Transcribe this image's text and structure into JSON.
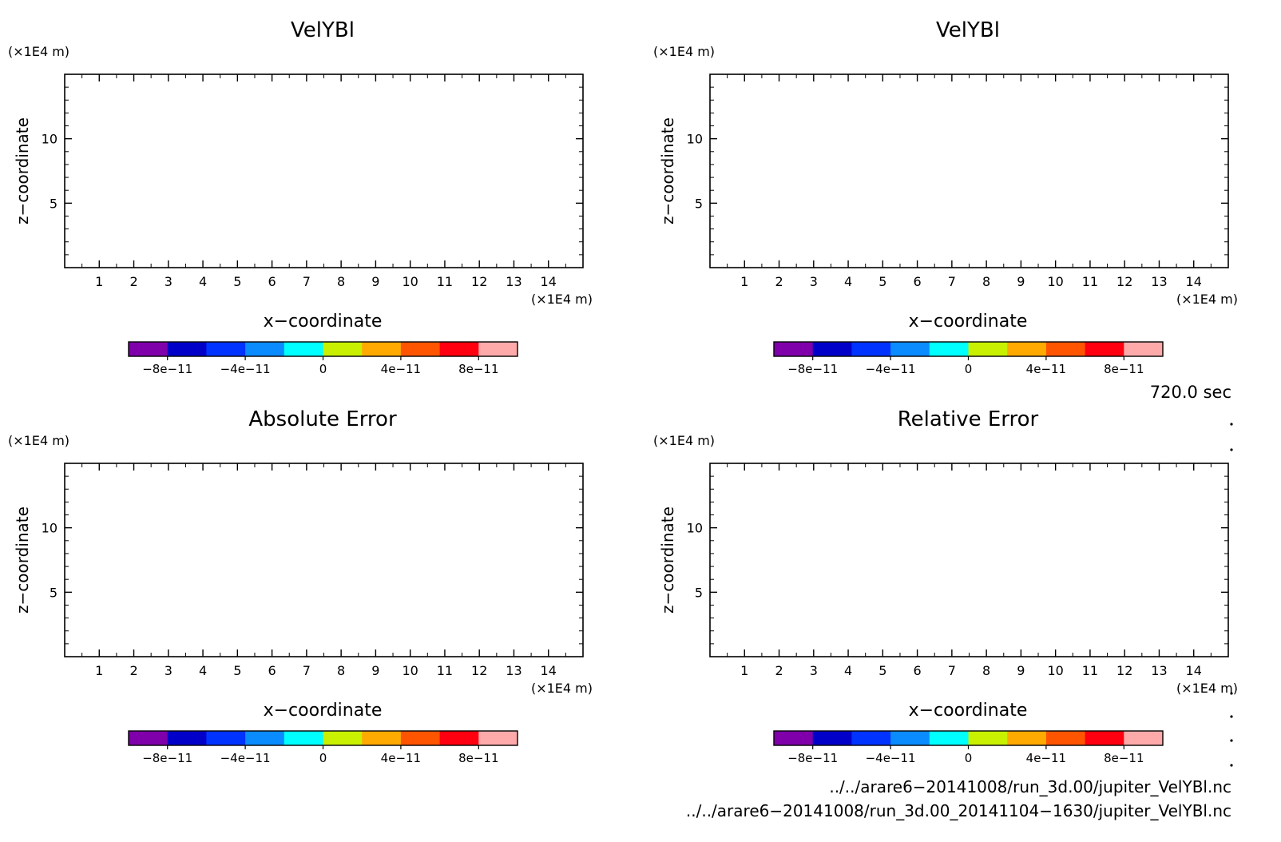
{
  "chart_data": [
    {
      "type": "heatmap",
      "title": "VelYBl",
      "xlabel": "x−coordinate",
      "ylabel": "z−coordinate",
      "x_unit": "(×1E4 m)",
      "y_unit": "(×1E4 m)",
      "xlim": [
        0,
        15
      ],
      "ylim": [
        0,
        15
      ],
      "x_ticks": [
        1,
        2,
        3,
        4,
        5,
        6,
        7,
        8,
        9,
        10,
        11,
        12,
        13,
        14
      ],
      "y_ticks": [
        5,
        10
      ],
      "values": [],
      "colorbar": {
        "range": [
          -1e-10,
          1e-10
        ],
        "tick_values": [
          -8e-11,
          -4e-11,
          0,
          4e-11,
          8e-11
        ],
        "tick_labels": [
          "−8e−11",
          "−4e−11",
          "0",
          "4e−11",
          "8e−11"
        ]
      }
    },
    {
      "type": "heatmap",
      "title": "VelYBl",
      "xlabel": "x−coordinate",
      "ylabel": "z−coordinate",
      "x_unit": "(×1E4 m)",
      "y_unit": "(×1E4 m)",
      "xlim": [
        0,
        15
      ],
      "ylim": [
        0,
        15
      ],
      "x_ticks": [
        1,
        2,
        3,
        4,
        5,
        6,
        7,
        8,
        9,
        10,
        11,
        12,
        13,
        14
      ],
      "y_ticks": [
        5,
        10
      ],
      "values": [],
      "colorbar": {
        "range": [
          -1e-10,
          1e-10
        ],
        "tick_values": [
          -8e-11,
          -4e-11,
          0,
          4e-11,
          8e-11
        ],
        "tick_labels": [
          "−8e−11",
          "−4e−11",
          "0",
          "4e−11",
          "8e−11"
        ]
      }
    },
    {
      "type": "heatmap",
      "title": "Absolute Error",
      "xlabel": "x−coordinate",
      "ylabel": "z−coordinate",
      "x_unit": "(×1E4 m)",
      "y_unit": "(×1E4 m)",
      "xlim": [
        0,
        15
      ],
      "ylim": [
        0,
        15
      ],
      "x_ticks": [
        1,
        2,
        3,
        4,
        5,
        6,
        7,
        8,
        9,
        10,
        11,
        12,
        13,
        14
      ],
      "y_ticks": [
        5,
        10
      ],
      "values": [],
      "colorbar": {
        "range": [
          -1e-10,
          1e-10
        ],
        "tick_values": [
          -8e-11,
          -4e-11,
          0,
          4e-11,
          8e-11
        ],
        "tick_labels": [
          "−8e−11",
          "−4e−11",
          "0",
          "4e−11",
          "8e−11"
        ]
      }
    },
    {
      "type": "heatmap",
      "title": "Relative Error",
      "xlabel": "x−coordinate",
      "ylabel": "z−coordinate",
      "x_unit": "(×1E4 m)",
      "y_unit": "(×1E4 m)",
      "xlim": [
        0,
        15
      ],
      "ylim": [
        0,
        15
      ],
      "x_ticks": [
        1,
        2,
        3,
        4,
        5,
        6,
        7,
        8,
        9,
        10,
        11,
        12,
        13,
        14
      ],
      "y_ticks": [
        5,
        10
      ],
      "values": [],
      "colorbar": {
        "range": [
          -1e-10,
          1e-10
        ],
        "tick_values": [
          -8e-11,
          -4e-11,
          0,
          4e-11,
          8e-11
        ],
        "tick_labels": [
          "−8e−11",
          "−4e−11",
          "0",
          "4e−11",
          "8e−11"
        ]
      }
    }
  ],
  "colormap": [
    "#7f00aa",
    "#0000c8",
    "#0033ff",
    "#0a8cff",
    "#00ffff",
    "#c8f000",
    "#ffaa00",
    "#ff5500",
    "#ff0010",
    "#ffaaaa"
  ],
  "time_label": "720.0 sec",
  "file_lines": [
    "../../arare6−20141008/run_3d.00/jupiter_VelYBl.nc",
    "../../arare6−20141008/run_3d.00_20141104−1630/jupiter_VelYBl.nc"
  ]
}
